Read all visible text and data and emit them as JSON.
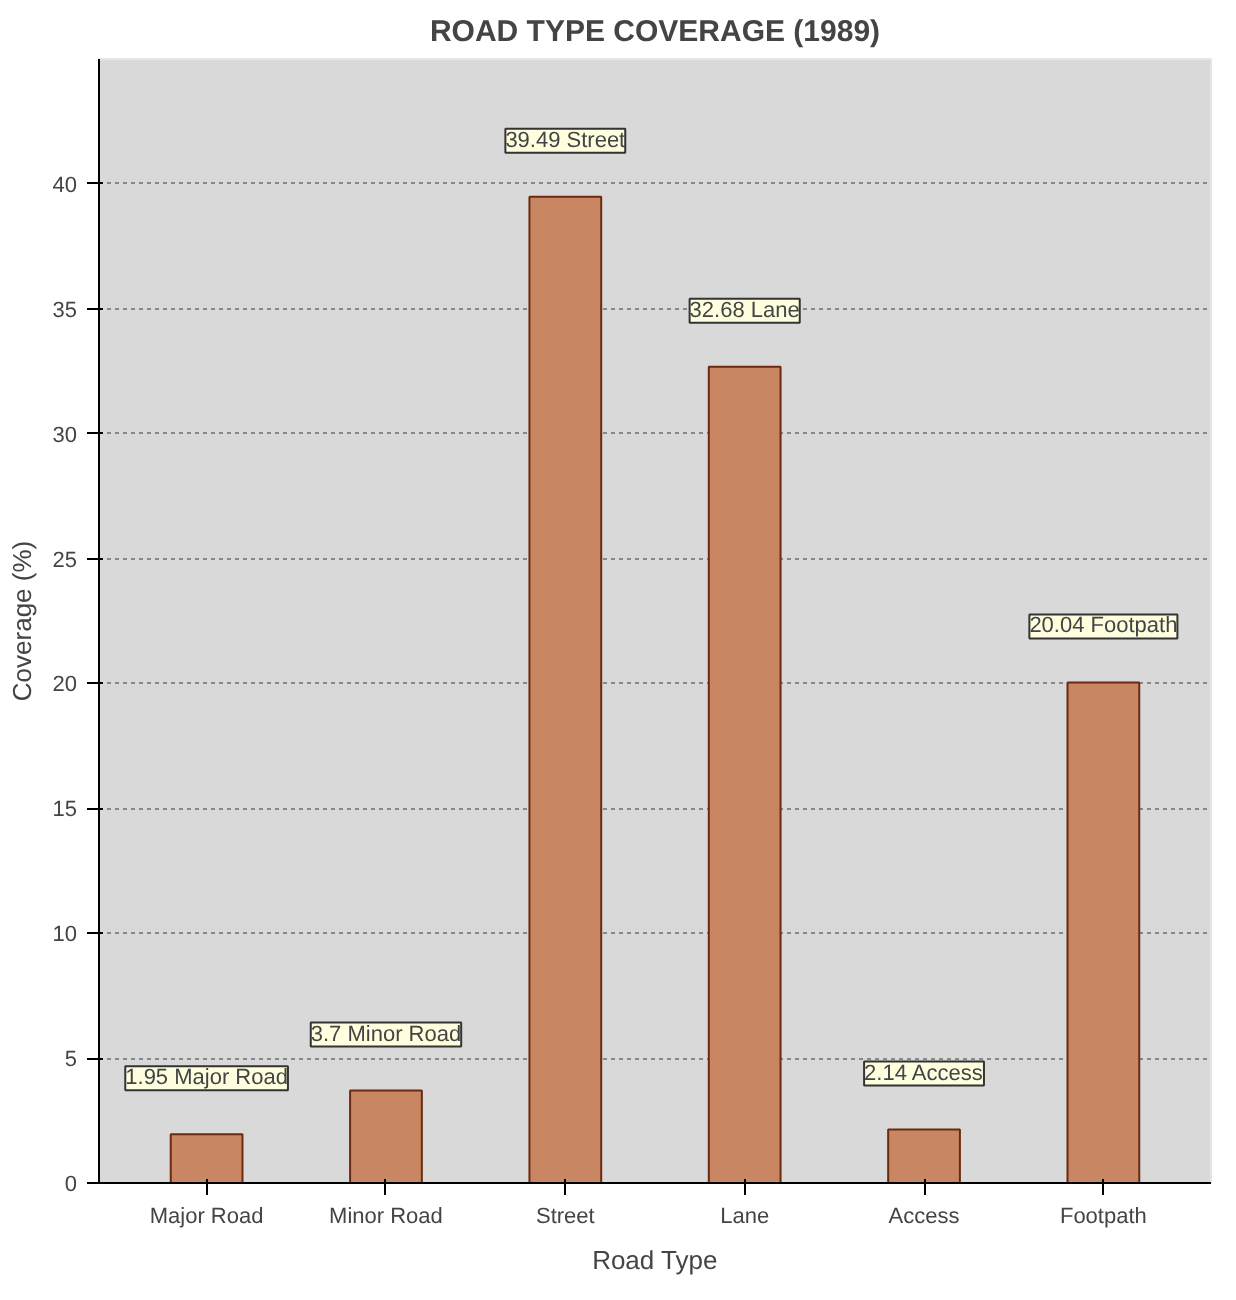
{
  "chart_data": {
    "type": "bar",
    "title": "ROAD TYPE COVERAGE (1989)",
    "xlabel": "Road Type",
    "ylabel": "Coverage (%)",
    "categories": [
      "Major Road",
      "Minor Road",
      "Street",
      "Lane",
      "Access",
      "Footpath"
    ],
    "values": [
      1.95,
      3.7,
      39.49,
      32.68,
      2.14,
      20.04
    ],
    "value_labels": [
      "1.95 Major Road",
      "3.7 Minor Road",
      "39.49 Street",
      "32.68 Lane",
      "2.14 Access",
      "20.04 Footpath"
    ],
    "color": "#c98662",
    "ylim": [
      0,
      45
    ],
    "yticks": [
      0,
      5,
      10,
      15,
      20,
      25,
      30,
      35,
      40
    ],
    "grid": "y"
  }
}
